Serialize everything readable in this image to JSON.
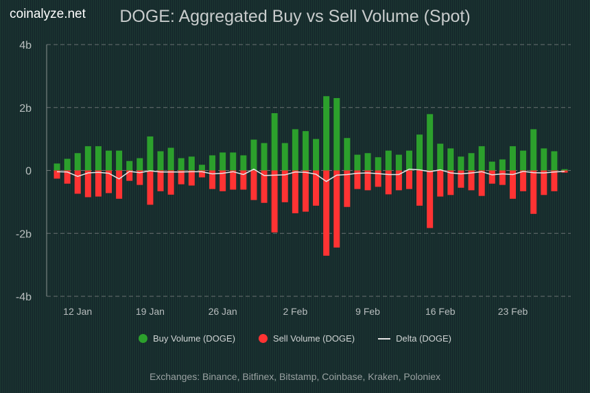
{
  "brand": "coinalyze.net",
  "chart_data": {
    "type": "bar",
    "title": "DOGE: Aggregated Buy vs Sell Volume (Spot)",
    "xlabel": "",
    "ylabel": "",
    "ylim": [
      -4,
      4
    ],
    "y_unit": "b",
    "y_ticks": [
      "4b",
      "2b",
      "0",
      "-2b",
      "-4b"
    ],
    "x_tick_labels": [
      "12 Jan",
      "19 Jan",
      "26 Jan",
      "2 Feb",
      "9 Feb",
      "16 Feb",
      "23 Feb"
    ],
    "grid": "horizontal dashed",
    "legend_position": "bottom",
    "categories": [
      "Jan 10",
      "Jan 11",
      "Jan 12",
      "Jan 13",
      "Jan 14",
      "Jan 15",
      "Jan 16",
      "Jan 17",
      "Jan 18",
      "Jan 19",
      "Jan 20",
      "Jan 21",
      "Jan 22",
      "Jan 23",
      "Jan 24",
      "Jan 25",
      "Jan 26",
      "Jan 27",
      "Jan 28",
      "Jan 29",
      "Jan 30",
      "Jan 31",
      "Feb 1",
      "Feb 2",
      "Feb 3",
      "Feb 4",
      "Feb 5",
      "Feb 6",
      "Feb 7",
      "Feb 8",
      "Feb 9",
      "Feb 10",
      "Feb 11",
      "Feb 12",
      "Feb 13",
      "Feb 14",
      "Feb 15",
      "Feb 16",
      "Feb 17",
      "Feb 18",
      "Feb 19",
      "Feb 20",
      "Feb 21",
      "Feb 22",
      "Feb 23",
      "Feb 24",
      "Feb 25",
      "Feb 26",
      "Feb 27",
      "Feb 28"
    ],
    "series": [
      {
        "name": "Buy Volume (DOGE)",
        "type": "bar",
        "color": "#2ca02c",
        "values": [
          0.22,
          0.37,
          0.55,
          0.77,
          0.77,
          0.63,
          0.63,
          0.3,
          0.39,
          1.08,
          0.61,
          0.72,
          0.39,
          0.44,
          0.18,
          0.48,
          0.57,
          0.57,
          0.48,
          0.98,
          0.87,
          1.82,
          0.87,
          1.31,
          1.25,
          1.0,
          2.36,
          2.3,
          1.03,
          0.5,
          0.55,
          0.42,
          0.63,
          0.5,
          0.63,
          1.14,
          1.79,
          0.85,
          0.7,
          0.44,
          0.55,
          0.77,
          0.28,
          0.35,
          0.77,
          0.63,
          1.31,
          0.7,
          0.61,
          0.04
        ]
      },
      {
        "name": "Sell Volume (DOGE)",
        "type": "bar",
        "color": "#ff3333",
        "values": [
          -0.26,
          -0.42,
          -0.74,
          -0.85,
          -0.83,
          -0.72,
          -0.9,
          -0.33,
          -0.46,
          -1.09,
          -0.66,
          -0.77,
          -0.44,
          -0.48,
          -0.22,
          -0.59,
          -0.66,
          -0.61,
          -0.61,
          -0.94,
          -1.03,
          -1.97,
          -1.01,
          -1.36,
          -1.31,
          -1.12,
          -2.71,
          -2.45,
          -1.16,
          -0.59,
          -0.63,
          -0.52,
          -0.76,
          -0.63,
          -0.59,
          -1.12,
          -1.83,
          -0.83,
          -0.78,
          -0.55,
          -0.63,
          -0.81,
          -0.42,
          -0.46,
          -0.9,
          -0.66,
          -1.38,
          -0.78,
          -0.66,
          -0.07
        ]
      },
      {
        "name": "Delta (DOGE)",
        "type": "line",
        "color": "#e6e6e6",
        "values": [
          -0.04,
          -0.05,
          -0.19,
          -0.08,
          -0.06,
          -0.09,
          -0.27,
          -0.03,
          -0.07,
          -0.01,
          -0.05,
          -0.05,
          -0.05,
          -0.04,
          -0.04,
          -0.11,
          -0.09,
          -0.04,
          -0.13,
          0.04,
          -0.16,
          -0.15,
          -0.14,
          -0.05,
          -0.06,
          -0.12,
          -0.35,
          -0.15,
          -0.13,
          -0.09,
          -0.08,
          -0.1,
          -0.13,
          -0.13,
          0.04,
          0.02,
          -0.04,
          0.02,
          -0.08,
          -0.11,
          -0.08,
          -0.04,
          -0.14,
          -0.11,
          -0.13,
          -0.03,
          -0.07,
          -0.08,
          -0.05,
          -0.03
        ]
      }
    ]
  },
  "legend": {
    "buy": "Buy Volume (DOGE)",
    "sell": "Sell Volume (DOGE)",
    "delta": "Delta (DOGE)"
  },
  "footer": "Exchanges: Binance, Bitfinex, Bitstamp, Coinbase, Kraken, Poloniex"
}
